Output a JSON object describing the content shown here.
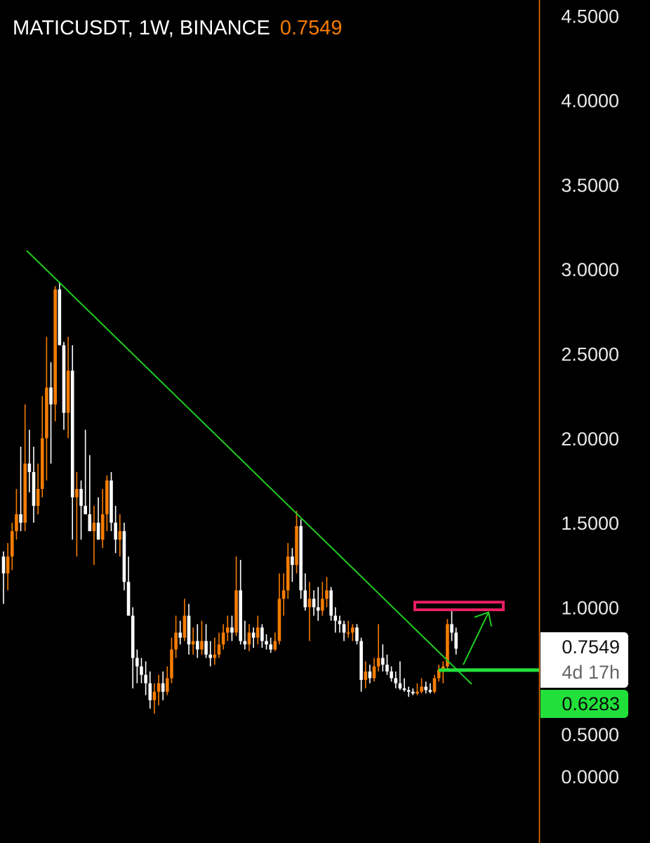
{
  "header": {
    "symbol_line": "MATICUSDT, 1W, BINANCE",
    "last_price": "0.7549"
  },
  "price_tags": {
    "last_price": "0.7549",
    "countdown": "4d 17h",
    "line_level": "0.6283"
  },
  "colors": {
    "up": "#f57c00",
    "down": "#ffffff",
    "trendline": "#22cc22",
    "level_line": "#22e03a",
    "target_box": "#e91e63",
    "axis_line": "#f57c00"
  },
  "chart_data": {
    "type": "candlestick",
    "title": "MATICUSDT, 1W, BINANCE",
    "ylim": [
      -0.3,
      4.6
    ],
    "y_ticks": [
      "0.0000",
      "0.5000",
      "1.0000",
      "1.5000",
      "2.0000",
      "2.5000",
      "3.0000",
      "3.5000",
      "4.0000",
      "4.5000"
    ],
    "y_tick_values": [
      0,
      0.5,
      1,
      1.5,
      2,
      2.5,
      3,
      3.5,
      4,
      4.5
    ],
    "grid": false,
    "ohlc": [
      [
        1.3,
        1.33,
        1.02,
        1.2
      ],
      [
        1.2,
        1.38,
        1.1,
        1.3
      ],
      [
        1.3,
        1.5,
        1.22,
        1.45
      ],
      [
        1.45,
        1.7,
        1.4,
        1.55
      ],
      [
        1.55,
        1.95,
        1.45,
        1.5
      ],
      [
        1.5,
        2.2,
        1.45,
        1.85
      ],
      [
        1.85,
        2.05,
        1.68,
        1.8
      ],
      [
        1.8,
        1.95,
        1.5,
        1.6
      ],
      [
        1.6,
        1.85,
        1.55,
        1.7
      ],
      [
        1.7,
        2.25,
        1.65,
        2.0
      ],
      [
        2.0,
        2.6,
        1.75,
        2.3
      ],
      [
        2.3,
        2.45,
        1.85,
        2.2
      ],
      [
        2.2,
        2.9,
        2.1,
        2.88
      ],
      [
        2.88,
        2.92,
        2.55,
        2.55
      ],
      [
        2.55,
        2.57,
        2.05,
        2.15
      ],
      [
        2.15,
        2.6,
        2.0,
        2.4
      ],
      [
        2.4,
        2.55,
        1.4,
        1.65
      ],
      [
        1.65,
        1.8,
        1.3,
        1.7
      ],
      [
        1.7,
        1.75,
        1.4,
        1.6
      ],
      [
        1.6,
        2.05,
        1.55,
        1.55
      ],
      [
        1.55,
        1.9,
        1.45,
        1.45
      ],
      [
        1.45,
        1.6,
        1.25,
        1.5
      ],
      [
        1.5,
        1.65,
        1.4,
        1.4
      ],
      [
        1.4,
        1.7,
        1.35,
        1.55
      ],
      [
        1.55,
        1.78,
        1.45,
        1.75
      ],
      [
        1.75,
        1.8,
        1.45,
        1.5
      ],
      [
        1.5,
        1.6,
        1.32,
        1.4
      ],
      [
        1.4,
        1.55,
        1.3,
        1.45
      ],
      [
        1.45,
        1.5,
        1.1,
        1.15
      ],
      [
        1.15,
        1.3,
        0.95,
        0.95
      ],
      [
        0.95,
        1.0,
        0.52,
        0.7
      ],
      [
        0.7,
        0.75,
        0.55,
        0.65
      ],
      [
        0.65,
        0.7,
        0.55,
        0.6
      ],
      [
        0.6,
        0.68,
        0.48,
        0.55
      ],
      [
        0.55,
        0.62,
        0.4,
        0.45
      ],
      [
        0.45,
        0.55,
        0.37,
        0.5
      ],
      [
        0.5,
        0.6,
        0.42,
        0.55
      ],
      [
        0.55,
        0.62,
        0.45,
        0.5
      ],
      [
        0.5,
        0.65,
        0.48,
        0.58
      ],
      [
        0.58,
        0.82,
        0.55,
        0.75
      ],
      [
        0.75,
        0.95,
        0.7,
        0.85
      ],
      [
        0.85,
        0.92,
        0.78,
        0.82
      ],
      [
        0.82,
        1.05,
        0.8,
        0.95
      ],
      [
        0.95,
        1.02,
        0.72,
        0.78
      ],
      [
        0.78,
        0.88,
        0.72,
        0.8
      ],
      [
        0.8,
        0.9,
        0.7,
        0.75
      ],
      [
        0.75,
        0.92,
        0.72,
        0.8
      ],
      [
        0.8,
        0.9,
        0.7,
        0.72
      ],
      [
        0.72,
        0.8,
        0.65,
        0.7
      ],
      [
        0.7,
        0.82,
        0.66,
        0.72
      ],
      [
        0.72,
        0.85,
        0.7,
        0.78
      ],
      [
        0.78,
        0.9,
        0.75,
        0.85
      ],
      [
        0.85,
        0.95,
        0.8,
        0.88
      ],
      [
        0.88,
        0.95,
        0.8,
        0.85
      ],
      [
        0.85,
        1.3,
        0.83,
        1.1
      ],
      [
        1.1,
        1.28,
        0.78,
        0.8
      ],
      [
        0.8,
        0.92,
        0.75,
        0.78
      ],
      [
        0.78,
        0.9,
        0.74,
        0.85
      ],
      [
        0.85,
        0.88,
        0.76,
        0.82
      ],
      [
        0.82,
        0.95,
        0.78,
        0.88
      ],
      [
        0.88,
        0.9,
        0.76,
        0.8
      ],
      [
        0.8,
        0.84,
        0.75,
        0.78
      ],
      [
        0.78,
        0.82,
        0.73,
        0.75
      ],
      [
        0.75,
        0.85,
        0.74,
        0.8
      ],
      [
        0.8,
        1.2,
        0.78,
        1.05
      ],
      [
        1.05,
        1.2,
        0.95,
        1.1
      ],
      [
        1.1,
        1.38,
        1.05,
        1.3
      ],
      [
        1.3,
        1.35,
        1.15,
        1.25
      ],
      [
        1.25,
        1.57,
        1.2,
        1.48
      ],
      [
        1.48,
        1.52,
        1.05,
        1.1
      ],
      [
        1.1,
        1.2,
        0.98,
        1.0
      ],
      [
        1.0,
        1.15,
        0.8,
        1.05
      ],
      [
        1.05,
        1.1,
        0.95,
        1.0
      ],
      [
        1.0,
        1.12,
        0.92,
        0.98
      ],
      [
        0.98,
        1.15,
        0.95,
        1.05
      ],
      [
        1.05,
        1.18,
        1.0,
        1.1
      ],
      [
        1.1,
        1.12,
        0.92,
        0.95
      ],
      [
        0.95,
        1.0,
        0.85,
        0.92
      ],
      [
        0.92,
        0.95,
        0.85,
        0.9
      ],
      [
        0.9,
        0.92,
        0.8,
        0.85
      ],
      [
        0.85,
        0.92,
        0.82,
        0.85
      ],
      [
        0.85,
        0.9,
        0.8,
        0.88
      ],
      [
        0.88,
        0.9,
        0.78,
        0.8
      ],
      [
        0.8,
        0.82,
        0.5,
        0.57
      ],
      [
        0.57,
        0.68,
        0.52,
        0.62
      ],
      [
        0.62,
        0.66,
        0.55,
        0.58
      ],
      [
        0.58,
        0.7,
        0.56,
        0.65
      ],
      [
        0.65,
        0.9,
        0.62,
        0.7
      ],
      [
        0.7,
        0.78,
        0.62,
        0.66
      ],
      [
        0.66,
        0.72,
        0.6,
        0.62
      ],
      [
        0.62,
        0.65,
        0.56,
        0.58
      ],
      [
        0.58,
        0.62,
        0.52,
        0.55
      ],
      [
        0.55,
        0.68,
        0.51,
        0.52
      ],
      [
        0.52,
        0.58,
        0.5,
        0.51
      ],
      [
        0.51,
        0.53,
        0.47,
        0.5
      ],
      [
        0.5,
        0.52,
        0.48,
        0.49
      ],
      [
        0.49,
        0.55,
        0.48,
        0.5
      ],
      [
        0.5,
        0.58,
        0.49,
        0.53
      ],
      [
        0.53,
        0.56,
        0.49,
        0.51
      ],
      [
        0.51,
        0.55,
        0.49,
        0.5
      ],
      [
        0.5,
        0.6,
        0.49,
        0.58
      ],
      [
        0.58,
        0.66,
        0.56,
        0.63
      ],
      [
        0.63,
        0.68,
        0.55,
        0.65
      ],
      [
        0.65,
        0.93,
        0.63,
        0.9
      ],
      [
        0.9,
        0.98,
        0.8,
        0.85
      ],
      [
        0.85,
        0.88,
        0.72,
        0.7549
      ]
    ],
    "annotations": {
      "trendline": {
        "from_price": 3.11,
        "to_price": 0.545
      },
      "support_line_price": 0.6283,
      "target_box": {
        "top_price": 1.03,
        "bottom_price": 0.985
      },
      "arrow": {
        "from_price": 0.66,
        "to_price": 0.97
      }
    }
  }
}
